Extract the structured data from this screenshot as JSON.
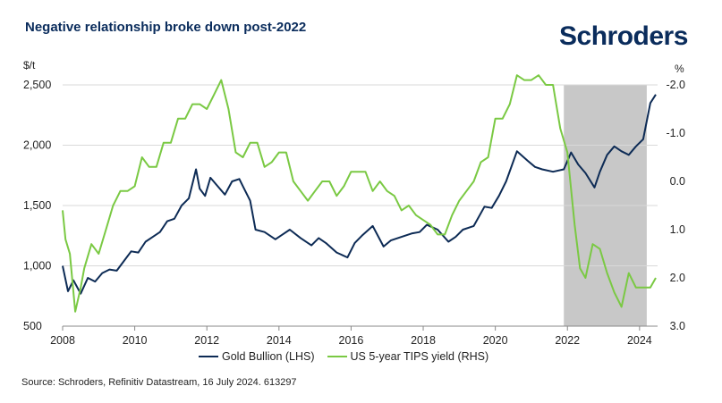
{
  "header": {
    "title": "Negative relationship broke down post-2022",
    "logo_text": "Schroders"
  },
  "source": "Source: Schroders, Refinitiv Datastream, 16 July 2024. 613297",
  "chart_data": {
    "type": "line",
    "title": "Negative relationship broke down post-2022",
    "left_axis": {
      "unit": "$/t",
      "ylim": [
        500,
        2500
      ],
      "ticks": [
        500,
        1000,
        1500,
        2000,
        2500
      ],
      "tick_labels": [
        "500",
        "1,000",
        "1,500",
        "2,000",
        "2,500"
      ]
    },
    "right_axis": {
      "unit": "%",
      "ylim": [
        -2.0,
        3.0
      ],
      "inverted": true,
      "ticks": [
        -2.0,
        -1.0,
        0.0,
        1.0,
        2.0,
        3.0
      ],
      "tick_labels": [
        "-2.0",
        "-1.0",
        "0.0",
        "1.0",
        "2.0",
        "3.0"
      ]
    },
    "x_axis": {
      "xlim": [
        2008,
        2024.5
      ],
      "ticks": [
        2008,
        2010,
        2012,
        2014,
        2016,
        2018,
        2020,
        2022,
        2024
      ],
      "tick_labels": [
        "2008",
        "2010",
        "2012",
        "2014",
        "2016",
        "2018",
        "2020",
        "2022",
        "2024"
      ]
    },
    "shaded_region": [
      2021.9,
      2024.2
    ],
    "grid": "horizontal",
    "legend_position": "bottom",
    "colors": {
      "gold": "#0d2b55",
      "tips": "#7ac943",
      "shade": "#c8c8c8"
    },
    "series": [
      {
        "name": "Gold Bullion (LHS)",
        "axis": "left",
        "x": [
          2008.0,
          2008.15,
          2008.3,
          2008.5,
          2008.7,
          2008.9,
          2009.1,
          2009.3,
          2009.5,
          2009.7,
          2009.9,
          2010.1,
          2010.3,
          2010.5,
          2010.7,
          2010.9,
          2011.1,
          2011.3,
          2011.5,
          2011.7,
          2011.8,
          2011.95,
          2012.1,
          2012.3,
          2012.5,
          2012.7,
          2012.9,
          2013.0,
          2013.2,
          2013.35,
          2013.6,
          2013.9,
          2014.1,
          2014.3,
          2014.6,
          2014.9,
          2015.1,
          2015.3,
          2015.6,
          2015.9,
          2016.1,
          2016.3,
          2016.6,
          2016.9,
          2017.1,
          2017.4,
          2017.7,
          2017.9,
          2018.1,
          2018.4,
          2018.7,
          2018.9,
          2019.1,
          2019.4,
          2019.7,
          2019.9,
          2020.1,
          2020.3,
          2020.6,
          2020.9,
          2021.1,
          2021.3,
          2021.6,
          2021.9,
          2022.1,
          2022.3,
          2022.5,
          2022.75,
          2022.9,
          2023.1,
          2023.3,
          2023.5,
          2023.7,
          2023.9,
          2024.1,
          2024.3,
          2024.45
        ],
        "values": [
          1000,
          790,
          880,
          770,
          900,
          870,
          940,
          970,
          960,
          1040,
          1120,
          1110,
          1200,
          1240,
          1280,
          1370,
          1390,
          1500,
          1560,
          1800,
          1640,
          1580,
          1730,
          1660,
          1590,
          1700,
          1720,
          1660,
          1540,
          1300,
          1280,
          1220,
          1260,
          1300,
          1230,
          1170,
          1230,
          1190,
          1110,
          1070,
          1190,
          1250,
          1330,
          1160,
          1210,
          1240,
          1270,
          1280,
          1340,
          1300,
          1200,
          1240,
          1300,
          1330,
          1490,
          1480,
          1580,
          1700,
          1950,
          1870,
          1820,
          1800,
          1780,
          1800,
          1940,
          1840,
          1770,
          1650,
          1780,
          1920,
          1990,
          1950,
          1920,
          1990,
          2050,
          2350,
          2420
        ]
      },
      {
        "name": "US 5-year TIPS yield (RHS)",
        "axis": "right",
        "x": [
          2008.0,
          2008.08,
          2008.2,
          2008.35,
          2008.5,
          2008.6,
          2008.8,
          2009.0,
          2009.2,
          2009.4,
          2009.6,
          2009.8,
          2010.0,
          2010.2,
          2010.4,
          2010.6,
          2010.8,
          2011.0,
          2011.2,
          2011.4,
          2011.6,
          2011.8,
          2012.0,
          2012.2,
          2012.4,
          2012.6,
          2012.8,
          2013.0,
          2013.2,
          2013.4,
          2013.6,
          2013.8,
          2014.0,
          2014.2,
          2014.4,
          2014.6,
          2014.8,
          2015.0,
          2015.2,
          2015.4,
          2015.6,
          2015.8,
          2016.0,
          2016.2,
          2016.4,
          2016.6,
          2016.8,
          2017.0,
          2017.2,
          2017.4,
          2017.6,
          2017.8,
          2018.0,
          2018.2,
          2018.4,
          2018.6,
          2018.8,
          2019.0,
          2019.2,
          2019.4,
          2019.6,
          2019.8,
          2020.0,
          2020.2,
          2020.4,
          2020.6,
          2020.8,
          2021.0,
          2021.2,
          2021.4,
          2021.6,
          2021.8,
          2022.0,
          2022.2,
          2022.35,
          2022.5,
          2022.7,
          2022.9,
          2023.1,
          2023.3,
          2023.5,
          2023.7,
          2023.9,
          2024.1,
          2024.3,
          2024.45
        ],
        "values": [
          0.6,
          1.2,
          1.5,
          2.7,
          2.2,
          1.8,
          1.3,
          1.5,
          1.0,
          0.5,
          0.2,
          0.2,
          0.1,
          -0.5,
          -0.3,
          -0.3,
          -0.8,
          -0.8,
          -1.3,
          -1.3,
          -1.6,
          -1.6,
          -1.5,
          -1.8,
          -2.1,
          -1.5,
          -0.6,
          -0.5,
          -0.8,
          -0.8,
          -0.3,
          -0.4,
          -0.6,
          -0.6,
          0.0,
          0.2,
          0.4,
          0.2,
          0.0,
          0.0,
          0.3,
          0.1,
          -0.2,
          -0.2,
          -0.2,
          0.2,
          0.0,
          0.2,
          0.3,
          0.6,
          0.5,
          0.7,
          0.8,
          0.9,
          1.1,
          1.1,
          0.7,
          0.4,
          0.2,
          0.0,
          -0.4,
          -0.5,
          -1.3,
          -1.3,
          -1.6,
          -2.2,
          -2.1,
          -2.1,
          -2.2,
          -2.0,
          -2.0,
          -1.1,
          -0.6,
          0.9,
          1.8,
          2.0,
          1.3,
          1.4,
          1.9,
          2.3,
          2.6,
          1.9,
          2.2,
          2.2,
          2.2,
          2.0
        ]
      }
    ]
  }
}
